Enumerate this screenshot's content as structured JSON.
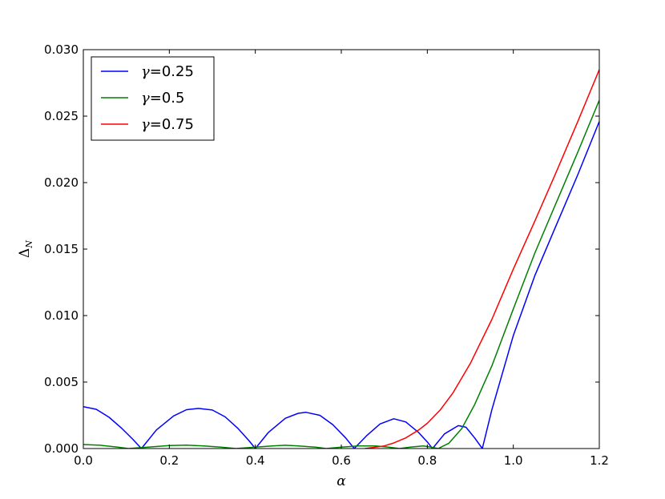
{
  "chart_data": {
    "type": "line",
    "title": "",
    "xlabel": "α",
    "ylabel_main": "Δ",
    "ylabel_sub": "N",
    "xlim": [
      0.0,
      1.2
    ],
    "ylim": [
      0.0,
      0.03
    ],
    "x_ticks": [
      "0.0",
      "0.2",
      "0.4",
      "0.6",
      "0.8",
      "1.0",
      "1.2"
    ],
    "y_ticks": [
      "0.000",
      "0.005",
      "0.010",
      "0.015",
      "0.020",
      "0.025",
      "0.030"
    ],
    "grid": false,
    "legend_position": "top-left",
    "series": [
      {
        "name": "γ=0.25",
        "legend_symbol": "γ",
        "legend_value": "=0.25",
        "color": "#0000ff",
        "points": [
          [
            0.0,
            0.00315
          ],
          [
            0.03,
            0.00295
          ],
          [
            0.06,
            0.00235
          ],
          [
            0.09,
            0.0015
          ],
          [
            0.115,
            0.0007
          ],
          [
            0.135,
            0.0
          ],
          [
            0.17,
            0.0014
          ],
          [
            0.21,
            0.00245
          ],
          [
            0.24,
            0.00292
          ],
          [
            0.268,
            0.00302
          ],
          [
            0.3,
            0.0029
          ],
          [
            0.33,
            0.00238
          ],
          [
            0.36,
            0.0015
          ],
          [
            0.385,
            0.0006
          ],
          [
            0.4,
            0.0
          ],
          [
            0.43,
            0.0012
          ],
          [
            0.47,
            0.00228
          ],
          [
            0.5,
            0.00265
          ],
          [
            0.518,
            0.00272
          ],
          [
            0.55,
            0.0025
          ],
          [
            0.58,
            0.0018
          ],
          [
            0.61,
            0.0008
          ],
          [
            0.63,
            0.0
          ],
          [
            0.66,
            0.001
          ],
          [
            0.69,
            0.00185
          ],
          [
            0.722,
            0.00224
          ],
          [
            0.75,
            0.002
          ],
          [
            0.78,
            0.0012
          ],
          [
            0.8,
            0.0005
          ],
          [
            0.812,
            0.0
          ],
          [
            0.84,
            0.0011
          ],
          [
            0.872,
            0.00172
          ],
          [
            0.89,
            0.0016
          ],
          [
            0.91,
            0.0008
          ],
          [
            0.928,
            0.0
          ],
          [
            0.95,
            0.0029
          ],
          [
            1.0,
            0.0085
          ],
          [
            1.05,
            0.013
          ],
          [
            1.1,
            0.0168
          ],
          [
            1.15,
            0.0206
          ],
          [
            1.2,
            0.0246
          ]
        ]
      },
      {
        "name": "γ=0.5",
        "legend_symbol": "γ",
        "legend_value": "=0.5",
        "color": "#008000",
        "points": [
          [
            0.0,
            0.0003
          ],
          [
            0.04,
            0.00025
          ],
          [
            0.08,
            0.0001
          ],
          [
            0.105,
            0.0
          ],
          [
            0.15,
            0.0001
          ],
          [
            0.2,
            0.00022
          ],
          [
            0.24,
            0.00026
          ],
          [
            0.28,
            0.0002
          ],
          [
            0.32,
            0.0001
          ],
          [
            0.355,
            0.0
          ],
          [
            0.4,
            0.0001
          ],
          [
            0.44,
            0.0002
          ],
          [
            0.47,
            0.00025
          ],
          [
            0.5,
            0.0002
          ],
          [
            0.54,
            0.0001
          ],
          [
            0.565,
            0.0
          ],
          [
            0.6,
            0.0001
          ],
          [
            0.64,
            0.0002
          ],
          [
            0.68,
            0.0002
          ],
          [
            0.71,
            0.0001
          ],
          [
            0.735,
            0.0
          ],
          [
            0.76,
            0.0001
          ],
          [
            0.79,
            0.0002
          ],
          [
            0.81,
            0.0001
          ],
          [
            0.825,
            0.0
          ],
          [
            0.85,
            0.0004
          ],
          [
            0.88,
            0.0015
          ],
          [
            0.91,
            0.0033
          ],
          [
            0.95,
            0.0062
          ],
          [
            1.0,
            0.0105
          ],
          [
            1.05,
            0.0147
          ],
          [
            1.1,
            0.0185
          ],
          [
            1.15,
            0.0223
          ],
          [
            1.2,
            0.0262
          ]
        ]
      },
      {
        "name": "γ=0.75",
        "legend_symbol": "γ",
        "legend_value": "=0.75",
        "color": "#ff0000",
        "points": [
          [
            0.655,
            0.0
          ],
          [
            0.68,
            0.0001
          ],
          [
            0.7,
            0.0002
          ],
          [
            0.72,
            0.0004
          ],
          [
            0.75,
            0.0008
          ],
          [
            0.78,
            0.0014
          ],
          [
            0.8,
            0.0019
          ],
          [
            0.83,
            0.0029
          ],
          [
            0.86,
            0.0042
          ],
          [
            0.9,
            0.0064
          ],
          [
            0.95,
            0.0097
          ],
          [
            1.0,
            0.0135
          ],
          [
            1.05,
            0.0171
          ],
          [
            1.1,
            0.0208
          ],
          [
            1.15,
            0.0246
          ],
          [
            1.2,
            0.0285
          ]
        ]
      }
    ]
  }
}
